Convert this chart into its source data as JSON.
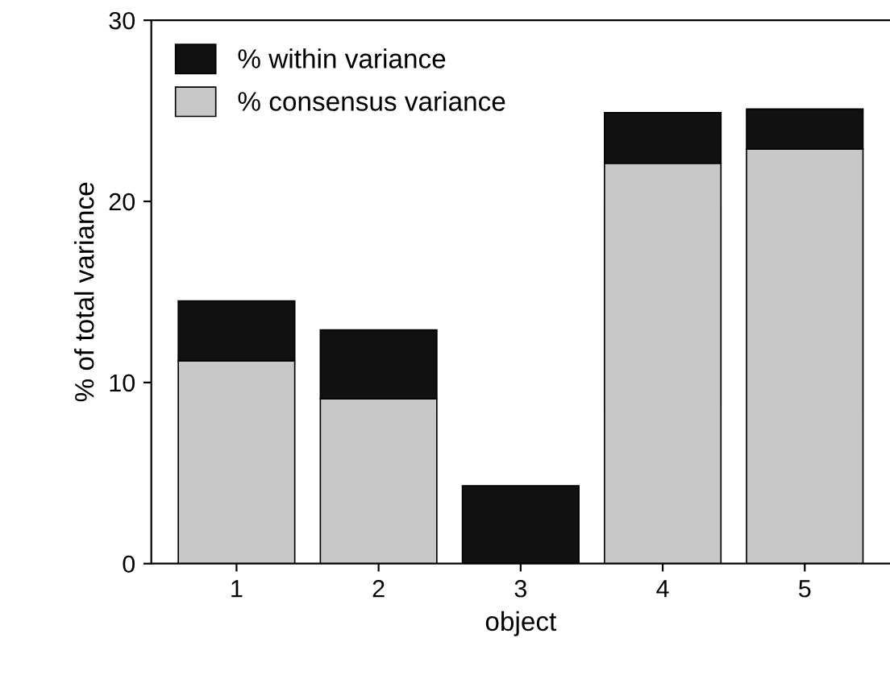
{
  "chart_data": {
    "type": "bar",
    "stacked": true,
    "xlabel": "object",
    "ylabel": "% of total variance",
    "categories": [
      "1",
      "2",
      "3",
      "4",
      "5"
    ],
    "series": [
      {
        "name": "% consensus variance",
        "color": "#c8c8c8",
        "values": [
          11.2,
          9.1,
          0,
          22.1,
          22.9
        ]
      },
      {
        "name": "% within variance",
        "color": "#111111",
        "values": [
          3.3,
          3.8,
          4.3,
          2.8,
          2.2
        ]
      }
    ],
    "ylim": [
      0,
      30
    ],
    "yticks": [
      0,
      10,
      20,
      30
    ],
    "grid": false,
    "legend": "top left"
  }
}
